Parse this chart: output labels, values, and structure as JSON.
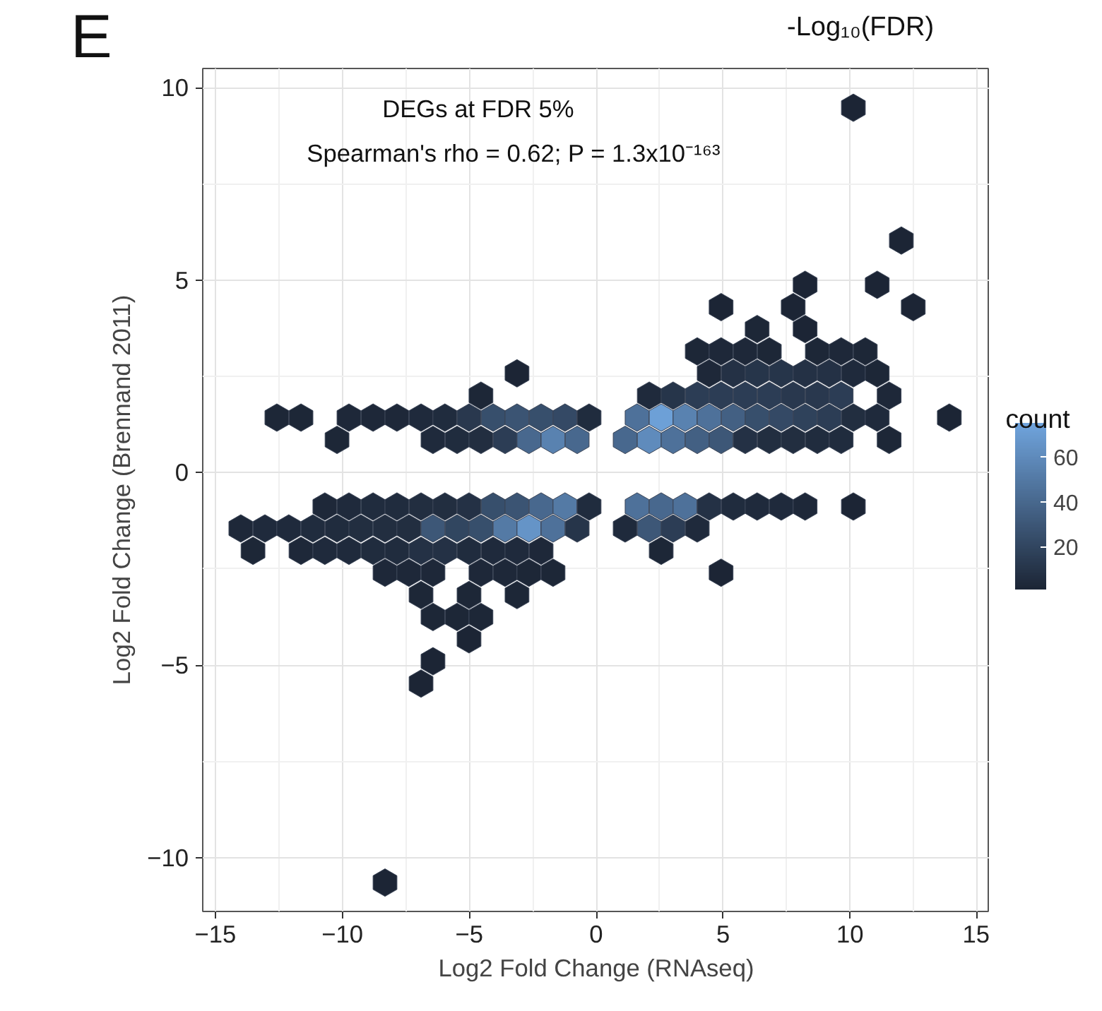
{
  "chart_data": {
    "type": "scatter",
    "annotations": [
      "E",
      "-Log₁₀(FDR)",
      "DEGs at FDR 5%",
      "Spearman's rho = 0.62; P = 1.3x10⁻¹⁶³"
    ],
    "xlabel": "Log2 Fold Change (RNAseq)",
    "ylabel": "Log2 Fold Change (Brennand 2011)",
    "xlim": [
      -15.5,
      15.5
    ],
    "ylim": [
      -11.4,
      10.5
    ],
    "xticks": [
      -15,
      -10,
      -5,
      0,
      5,
      10,
      15
    ],
    "yticks": [
      -10,
      -5,
      0,
      5,
      10
    ],
    "grid": true,
    "clabel": "count",
    "clim": [
      1,
      75
    ],
    "cticks": [
      20,
      40,
      60
    ],
    "series": [
      {
        "x": [
          10.13,
          12.02,
          8.23,
          11.07,
          4.92,
          7.76,
          12.49,
          6.34,
          8.23,
          3.98,
          4.92,
          5.87,
          6.82,
          8.71,
          9.65,
          10.6,
          -3.12,
          4.45,
          5.4,
          6.34,
          7.29,
          8.23,
          9.18,
          10.13,
          11.07,
          -4.54,
          2.09,
          3.03,
          3.98,
          4.92,
          5.87,
          6.82,
          7.76,
          8.71,
          9.65,
          11.54,
          -12.58,
          -11.63,
          -9.74,
          -8.79,
          -7.85,
          -6.9,
          -5.96,
          -5.01,
          -4.06,
          -3.12,
          -2.17,
          -1.23,
          -0.28,
          1.61,
          2.56,
          3.5,
          4.45,
          5.4,
          6.34,
          7.29,
          8.23,
          9.18,
          10.13,
          11.07,
          13.91,
          -10.21,
          -6.43,
          -5.48,
          -4.54,
          -3.59,
          -2.65,
          -1.7,
          -0.75,
          1.14,
          2.09,
          3.03,
          3.98,
          4.92,
          5.87,
          6.82,
          7.76,
          8.71,
          9.65,
          11.54,
          -10.69,
          -9.74,
          -8.79,
          -7.85,
          -6.9,
          -5.96,
          -5.01,
          -4.06,
          -3.12,
          -2.17,
          -1.23,
          -0.28,
          1.61,
          2.56,
          3.5,
          4.45,
          5.4,
          6.34,
          7.29,
          8.23,
          10.13,
          -14,
          -13.05,
          -12.11,
          -11.16,
          -10.21,
          -9.27,
          -8.32,
          -7.38,
          -6.43,
          -5.48,
          -4.54,
          -3.59,
          -2.65,
          -1.7,
          -0.75,
          1.14,
          2.09,
          3.03,
          3.98,
          -13.52,
          -11.63,
          -10.69,
          -9.74,
          -8.79,
          -7.85,
          -6.9,
          -5.96,
          -5.01,
          -4.06,
          -3.12,
          -2.17,
          2.56,
          -8.32,
          -7.38,
          -6.43,
          -4.54,
          -3.59,
          -2.65,
          -1.7,
          4.92,
          -6.9,
          -5.01,
          -3.12,
          -6.43,
          -5.48,
          -4.54,
          -5.01,
          -6.43,
          -6.9,
          -8.32
        ],
        "values": [
          9.48,
          6.03,
          4.88,
          4.88,
          4.3,
          4.3,
          4.3,
          3.73,
          3.73,
          3.15,
          3.15,
          3.15,
          3.15,
          3.15,
          3.15,
          3.15,
          2.58,
          2.58,
          2.58,
          2.58,
          2.58,
          2.58,
          2.58,
          2.58,
          2.58,
          2.0,
          2.0,
          2.0,
          2.0,
          2.0,
          2.0,
          2.0,
          2.0,
          2.0,
          2.0,
          2.0,
          1.43,
          1.43,
          1.43,
          1.43,
          1.43,
          1.43,
          1.43,
          1.43,
          1.43,
          1.43,
          1.43,
          1.43,
          1.43,
          1.43,
          1.43,
          1.43,
          1.43,
          1.43,
          1.43,
          1.43,
          1.43,
          1.43,
          1.43,
          1.43,
          1.43,
          0.85,
          0.85,
          0.85,
          0.85,
          0.85,
          0.85,
          0.85,
          0.85,
          0.85,
          0.85,
          0.85,
          0.85,
          0.85,
          0.85,
          0.85,
          0.85,
          0.85,
          0.85,
          0.85,
          -0.88,
          -0.88,
          -0.88,
          -0.88,
          -0.88,
          -0.88,
          -0.88,
          -0.88,
          -0.88,
          -0.88,
          -0.88,
          -0.88,
          -0.88,
          -0.88,
          -0.88,
          -0.88,
          -0.88,
          -0.88,
          -0.88,
          -0.88,
          -0.88,
          -1.45,
          -1.45,
          -1.45,
          -1.45,
          -1.45,
          -1.45,
          -1.45,
          -1.45,
          -1.45,
          -1.45,
          -1.45,
          -1.45,
          -1.45,
          -1.45,
          -1.45,
          -1.45,
          -1.45,
          -1.45,
          -1.45,
          -2.03,
          -2.03,
          -2.03,
          -2.03,
          -2.03,
          -2.03,
          -2.03,
          -2.03,
          -2.03,
          -2.03,
          -2.03,
          -2.03,
          -2.03,
          -2.6,
          -2.6,
          -2.6,
          -2.6,
          -2.6,
          -2.6,
          -2.6,
          -2.6,
          -3.18,
          -3.18,
          -3.18,
          -3.75,
          -3.75,
          -3.75,
          -4.33,
          -4.9,
          -5.48,
          -10.65
        ],
        "cvalues": [
          1,
          1,
          1,
          1,
          1,
          1,
          1,
          2,
          1,
          2,
          3,
          3,
          2,
          2,
          3,
          2,
          1,
          3,
          8,
          10,
          10,
          8,
          8,
          4,
          2,
          2,
          4,
          10,
          15,
          15,
          15,
          15,
          12,
          12,
          15,
          3,
          2,
          2,
          3,
          3,
          3,
          4,
          5,
          12,
          25,
          28,
          25,
          22,
          5,
          45,
          72,
          55,
          45,
          35,
          25,
          22,
          18,
          15,
          6,
          4,
          1,
          2,
          4,
          5,
          6,
          15,
          40,
          55,
          40,
          40,
          60,
          45,
          35,
          30,
          8,
          6,
          6,
          5,
          5,
          2,
          3,
          4,
          5,
          5,
          6,
          6,
          8,
          25,
          28,
          40,
          50,
          5,
          45,
          40,
          45,
          8,
          5,
          4,
          4,
          3,
          1,
          3,
          4,
          4,
          5,
          5,
          6,
          6,
          6,
          30,
          20,
          25,
          50,
          65,
          45,
          10,
          4,
          30,
          15,
          4,
          2,
          3,
          4,
          4,
          5,
          5,
          8,
          8,
          5,
          4,
          4,
          3,
          2,
          3,
          3,
          3,
          3,
          3,
          2,
          2,
          1,
          2,
          2,
          2,
          2,
          2,
          2,
          1,
          1,
          1,
          1
        ]
      }
    ]
  }
}
